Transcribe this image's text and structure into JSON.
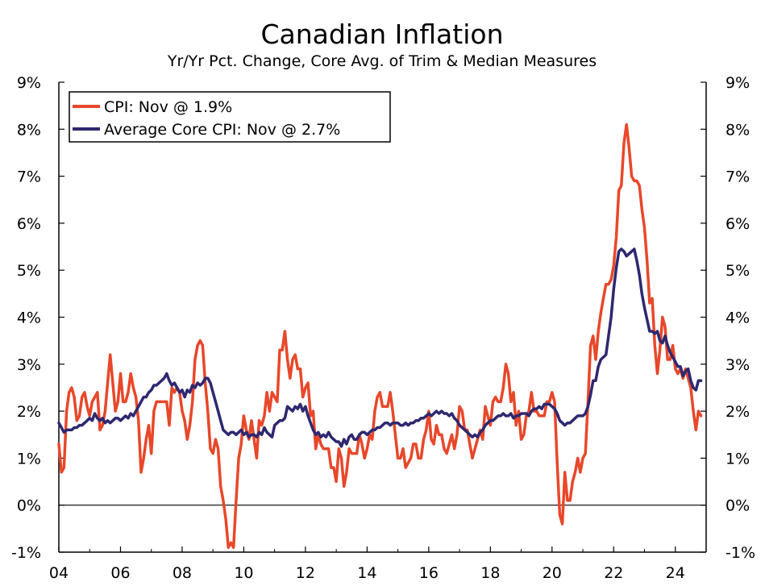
{
  "chart_data": {
    "type": "line",
    "title": "Canadian Inflation",
    "subtitle": "Yr/Yr Pct. Change, Core Avg. of Trim & Median Measures",
    "xlabel": "",
    "ylabel": "",
    "xlim": [
      2004.0,
      2025.0
    ],
    "ylim": [
      -1,
      9
    ],
    "yticks": [
      -1,
      0,
      1,
      2,
      3,
      4,
      5,
      6,
      7,
      8,
      9
    ],
    "ytick_labels": [
      "-1%",
      "0%",
      "1%",
      "2%",
      "3%",
      "4%",
      "5%",
      "6%",
      "7%",
      "8%",
      "9%"
    ],
    "xticks": [
      2004,
      2006,
      2008,
      2010,
      2012,
      2014,
      2016,
      2018,
      2020,
      2022,
      2024
    ],
    "xtick_labels": [
      "04",
      "06",
      "08",
      "10",
      "12",
      "14",
      "16",
      "18",
      "20",
      "22",
      "24"
    ],
    "grid": false,
    "zero_line": true,
    "legend": "top-left",
    "series": [
      {
        "name": "CPI: Nov @ 1.9%",
        "color": "#e8472a",
        "x_start": 2004.0,
        "step": 0.0833333,
        "values": [
          1.3,
          0.7,
          0.8,
          2.0,
          2.4,
          2.5,
          2.3,
          1.8,
          1.9,
          2.3,
          2.4,
          2.1,
          1.9,
          2.2,
          2.3,
          2.4,
          1.6,
          1.7,
          2.0,
          2.6,
          3.2,
          2.6,
          2.0,
          2.2,
          2.8,
          2.2,
          2.2,
          2.4,
          2.8,
          2.5,
          2.3,
          1.8,
          0.7,
          1.0,
          1.4,
          1.7,
          1.1,
          2.0,
          2.2,
          2.2,
          2.2,
          2.2,
          2.2,
          1.7,
          2.5,
          2.4,
          2.5,
          2.4,
          2.0,
          1.8,
          1.4,
          1.7,
          2.2,
          3.1,
          3.4,
          3.5,
          3.4,
          2.6,
          2.0,
          1.2,
          1.1,
          1.4,
          1.2,
          0.4,
          0.1,
          -0.3,
          -0.9,
          -0.8,
          -0.9,
          0.1,
          1.0,
          1.3,
          1.9,
          1.6,
          1.4,
          1.8,
          1.4,
          1.0,
          1.8,
          1.7,
          1.9,
          2.4,
          2.0,
          2.4,
          2.3,
          2.2,
          3.3,
          3.3,
          3.7,
          3.1,
          2.7,
          3.1,
          3.2,
          2.9,
          2.9,
          2.3,
          2.5,
          2.6,
          1.9,
          2.0,
          1.2,
          1.5,
          1.3,
          1.2,
          1.2,
          1.2,
          0.8,
          0.8,
          0.5,
          1.2,
          1.0,
          0.4,
          0.7,
          1.2,
          1.1,
          1.1,
          1.1,
          1.5,
          1.3,
          1.0,
          1.2,
          1.5,
          1.4,
          2.0,
          2.3,
          2.4,
          2.1,
          2.1,
          2.1,
          2.4,
          2.0,
          1.5,
          1.0,
          1.0,
          1.2,
          0.8,
          0.9,
          1.0,
          1.3,
          1.3,
          1.0,
          1.0,
          1.4,
          1.6,
          2.0,
          1.4,
          1.3,
          1.7,
          1.5,
          1.5,
          1.2,
          1.1,
          1.3,
          1.5,
          1.2,
          1.5,
          2.1,
          2.0,
          1.6,
          1.6,
          1.3,
          1.0,
          1.2,
          1.4,
          1.6,
          1.4,
          2.1,
          1.9,
          1.7,
          2.2,
          2.3,
          2.2,
          2.2,
          2.5,
          3.0,
          2.8,
          2.2,
          2.4,
          1.7,
          2.0,
          1.4,
          1.5,
          1.9,
          2.0,
          2.4,
          2.0,
          2.0,
          1.9,
          1.9,
          1.9,
          2.2,
          2.2,
          2.4,
          2.2,
          0.9,
          -0.2,
          -0.4,
          0.7,
          0.1,
          0.1,
          0.5,
          0.7,
          1.0,
          0.7,
          1.0,
          1.1,
          2.2,
          3.4,
          3.6,
          3.1,
          3.7,
          4.1,
          4.4,
          4.7,
          4.7,
          4.8,
          5.1,
          5.7,
          6.7,
          6.8,
          7.7,
          8.1,
          7.6,
          7.0,
          6.9,
          6.9,
          6.8,
          6.3,
          5.9,
          5.2,
          4.3,
          4.4,
          3.4,
          2.8,
          3.3,
          4.0,
          3.8,
          3.1,
          3.1,
          3.4,
          2.9,
          2.8,
          2.9,
          2.7,
          2.9,
          2.7,
          2.5,
          2.0,
          1.6,
          2.0,
          1.9
        ]
      },
      {
        "name": "Average Core CPI: Nov @ 2.7%",
        "color": "#2e2870",
        "x_start": 2004.0,
        "step": 0.0833333,
        "values": [
          1.75,
          1.65,
          1.55,
          1.6,
          1.6,
          1.6,
          1.65,
          1.65,
          1.7,
          1.7,
          1.75,
          1.8,
          1.85,
          1.8,
          1.95,
          1.85,
          1.8,
          1.85,
          1.75,
          1.8,
          1.75,
          1.8,
          1.85,
          1.85,
          1.8,
          1.85,
          1.9,
          1.85,
          1.95,
          1.9,
          2.0,
          2.1,
          2.2,
          2.3,
          2.3,
          2.4,
          2.45,
          2.55,
          2.55,
          2.6,
          2.65,
          2.7,
          2.8,
          2.65,
          2.55,
          2.6,
          2.5,
          2.4,
          2.45,
          2.3,
          2.45,
          2.4,
          2.55,
          2.5,
          2.6,
          2.55,
          2.6,
          2.7,
          2.7,
          2.6,
          2.4,
          2.2,
          2.0,
          1.8,
          1.6,
          1.55,
          1.5,
          1.55,
          1.55,
          1.5,
          1.55,
          1.6,
          1.5,
          1.55,
          1.45,
          1.5,
          1.5,
          1.45,
          1.55,
          1.5,
          1.65,
          1.55,
          1.5,
          1.45,
          1.7,
          1.75,
          1.8,
          1.8,
          1.85,
          2.1,
          2.05,
          2.0,
          2.1,
          2.05,
          2.15,
          2.0,
          2.1,
          1.9,
          1.75,
          1.6,
          1.5,
          1.55,
          1.45,
          1.5,
          1.45,
          1.55,
          1.45,
          1.4,
          1.35,
          1.35,
          1.25,
          1.4,
          1.3,
          1.45,
          1.5,
          1.4,
          1.4,
          1.5,
          1.55,
          1.55,
          1.5,
          1.55,
          1.6,
          1.6,
          1.65,
          1.65,
          1.7,
          1.75,
          1.75,
          1.7,
          1.75,
          1.75,
          1.75,
          1.7,
          1.7,
          1.75,
          1.7,
          1.75,
          1.75,
          1.8,
          1.8,
          1.85,
          1.85,
          1.9,
          1.95,
          1.9,
          1.95,
          2.0,
          1.95,
          2.0,
          1.95,
          1.95,
          1.9,
          1.95,
          1.85,
          1.8,
          1.7,
          1.65,
          1.6,
          1.55,
          1.5,
          1.45,
          1.5,
          1.45,
          1.55,
          1.6,
          1.7,
          1.75,
          1.8,
          1.8,
          1.85,
          1.9,
          1.9,
          1.95,
          1.9,
          1.9,
          1.95,
          1.85,
          1.9,
          1.9,
          1.95,
          1.95,
          1.95,
          1.9,
          2.0,
          2.05,
          2.05,
          2.1,
          2.05,
          2.15,
          2.15,
          2.15,
          2.1,
          2.05,
          1.95,
          1.8,
          1.75,
          1.7,
          1.75,
          1.75,
          1.8,
          1.85,
          1.9,
          1.9,
          1.9,
          1.95,
          2.1,
          2.35,
          2.65,
          2.65,
          2.95,
          3.1,
          3.15,
          3.2,
          3.6,
          4.0,
          4.6,
          5.05,
          5.4,
          5.45,
          5.4,
          5.3,
          5.35,
          5.4,
          5.45,
          5.2,
          4.9,
          4.5,
          4.2,
          3.95,
          3.7,
          3.7,
          3.65,
          3.7,
          3.5,
          3.45,
          3.6,
          3.4,
          3.25,
          3.15,
          3.05,
          2.95,
          2.95,
          2.75,
          2.85,
          2.9,
          2.65,
          2.5,
          2.45,
          2.65,
          2.65
        ]
      }
    ]
  }
}
